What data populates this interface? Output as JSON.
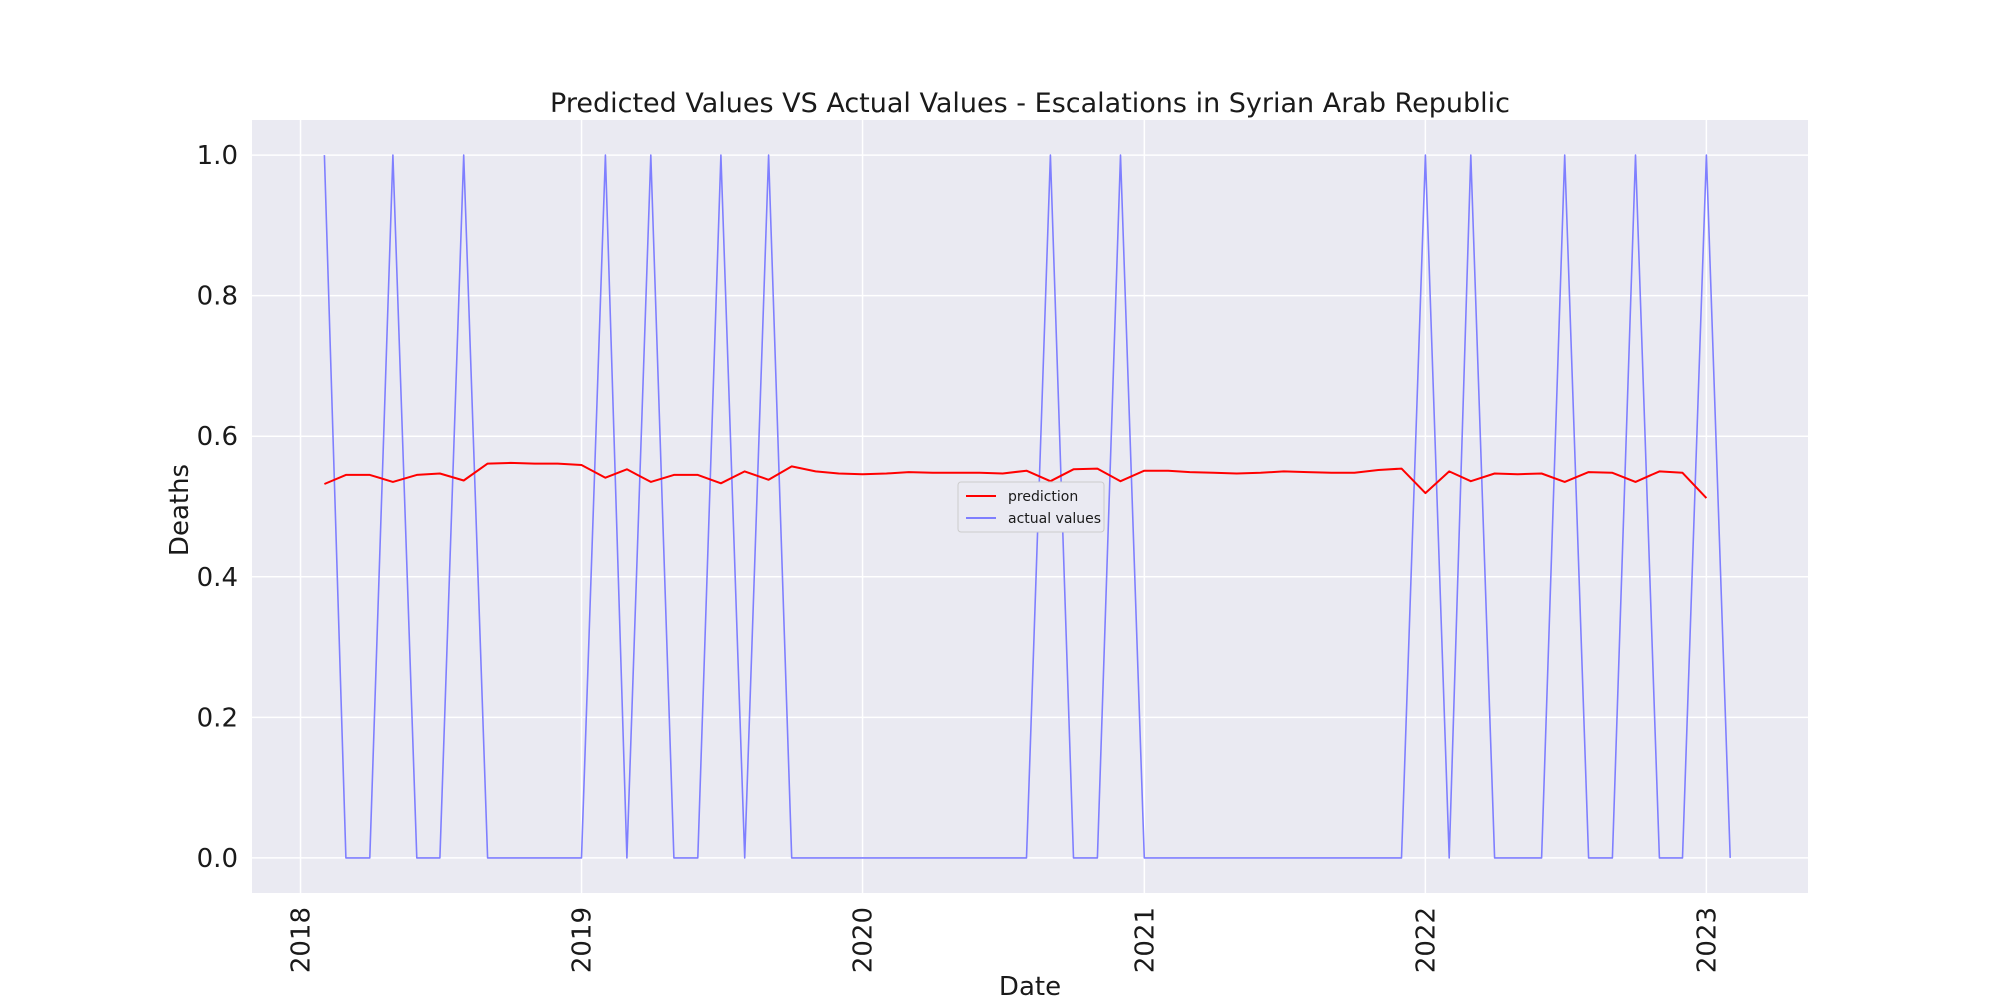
{
  "chart_data": {
    "type": "line",
    "title": "Predicted Values VS Actual Values - Escalations in Syrian Arab Republic",
    "xlabel": "Date",
    "ylabel": "Deaths",
    "xlim": [
      "2017-10-30",
      "2023-05-13"
    ],
    "ylim": [
      -0.05,
      1.05
    ],
    "xticks": [
      "2018",
      "2019",
      "2020",
      "2021",
      "2022",
      "2023"
    ],
    "yticks": [
      "0.0",
      "0.2",
      "0.4",
      "0.6",
      "0.8",
      "1.0"
    ],
    "grid": true,
    "background": "#eaeaf2",
    "legend": {
      "placement": "center"
    },
    "x": [
      "2018-02",
      "2018-03",
      "2018-04",
      "2018-05",
      "2018-06",
      "2018-07",
      "2018-08",
      "2018-09",
      "2018-10",
      "2018-11",
      "2018-12",
      "2019-01",
      "2019-02",
      "2019-03",
      "2019-04",
      "2019-05",
      "2019-06",
      "2019-07",
      "2019-08",
      "2019-09",
      "2019-10",
      "2019-11",
      "2019-12",
      "2020-01",
      "2020-02",
      "2020-03",
      "2020-04",
      "2020-05",
      "2020-06",
      "2020-07",
      "2020-08",
      "2020-09",
      "2020-10",
      "2020-11",
      "2020-12",
      "2021-01",
      "2021-02",
      "2021-03",
      "2021-04",
      "2021-05",
      "2021-06",
      "2021-07",
      "2021-08",
      "2021-09",
      "2021-10",
      "2021-11",
      "2021-12",
      "2022-01",
      "2022-02",
      "2022-03",
      "2022-04",
      "2022-05",
      "2022-06",
      "2022-07",
      "2022-08",
      "2022-09",
      "2022-10",
      "2022-11",
      "2022-12",
      "2023-01",
      "2023-02"
    ],
    "series": [
      {
        "name": "prediction",
        "color": "#ff0000",
        "values": [
          0.532,
          0.545,
          0.545,
          0.535,
          0.545,
          0.547,
          0.537,
          0.561,
          0.562,
          0.561,
          0.561,
          0.559,
          0.541,
          0.553,
          0.535,
          0.545,
          0.545,
          0.533,
          0.55,
          0.538,
          0.557,
          0.55,
          0.547,
          0.546,
          0.547,
          0.549,
          0.548,
          0.548,
          0.548,
          0.547,
          0.551,
          0.536,
          0.553,
          0.554,
          0.536,
          0.551,
          0.551,
          0.549,
          0.548,
          0.547,
          0.548,
          0.55,
          0.549,
          0.548,
          0.548,
          0.552,
          0.554,
          0.519,
          0.55,
          0.536,
          0.547,
          0.546,
          0.547,
          0.535,
          0.549,
          0.548,
          0.535,
          0.55,
          0.548,
          0.512,
          null
        ]
      },
      {
        "name": "actual values",
        "color": "#7f7fff",
        "values": [
          1,
          0,
          0,
          1,
          0,
          0,
          1,
          0,
          0,
          0,
          0,
          0,
          1,
          0,
          1,
          0,
          0,
          1,
          0,
          1,
          0,
          0,
          0,
          0,
          0,
          0,
          0,
          0,
          0,
          0,
          0,
          1,
          0,
          0,
          1,
          0,
          0,
          0,
          0,
          0,
          0,
          0,
          0,
          0,
          0,
          0,
          0,
          1,
          0,
          1,
          0,
          0,
          0,
          1,
          0,
          0,
          1,
          0,
          0,
          1,
          0
        ]
      }
    ]
  }
}
